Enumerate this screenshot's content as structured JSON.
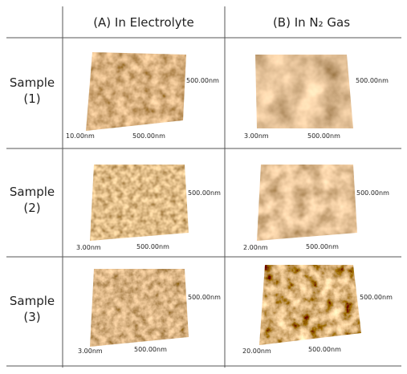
{
  "columns": [
    "(A) In Electrolyte",
    "(B) In N₂ Gas"
  ],
  "rows": [
    {
      "label": [
        "Sample",
        "(1)"
      ],
      "images": [
        {
          "side": "500.00nm",
          "height": "10.00nm",
          "bottom": "500.00nm"
        },
        {
          "side": "500.00nm",
          "height": "3.00nm",
          "bottom": "500.00nm"
        }
      ]
    },
    {
      "label": [
        "Sample",
        "(2)"
      ],
      "images": [
        {
          "side": "500.00nm",
          "height": "3.00nm",
          "bottom": "500.00nm"
        },
        {
          "side": "500.00nm",
          "height": "2.00nm",
          "bottom": "500.00nm"
        }
      ]
    },
    {
      "label": [
        "Sample",
        "(3)"
      ],
      "images": [
        {
          "side": "500.00nm",
          "height": "3.00nm",
          "bottom": "500.00nm"
        },
        {
          "side": "500.00nm",
          "height": "20.00nm",
          "bottom": "500.00nm"
        }
      ]
    }
  ]
}
